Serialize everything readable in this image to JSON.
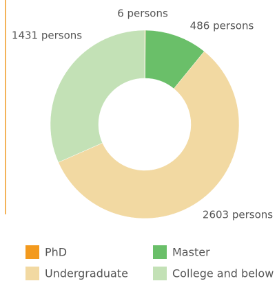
{
  "chart_data": {
    "type": "pie",
    "donut": true,
    "categories": [
      "PhD",
      "Master",
      "Undergraduate",
      "College and below"
    ],
    "values": [
      6,
      486,
      2603,
      1431
    ],
    "value_labels": [
      "6 persons",
      "486 persons",
      "2603 persons",
      "1431 persons"
    ],
    "colors": [
      "#f39a1e",
      "#6abf69",
      "#f2d9a2",
      "#c3e1b6"
    ],
    "legend": "bottom"
  }
}
